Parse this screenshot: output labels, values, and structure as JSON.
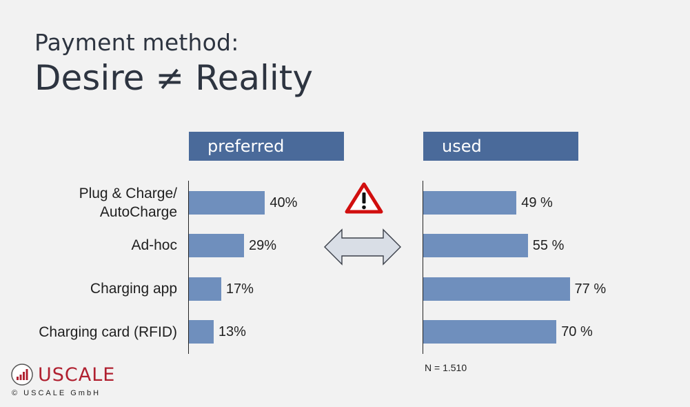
{
  "title": {
    "line1": "Payment method:",
    "line2": "Desire ≠ Reality"
  },
  "chart_data": {
    "type": "bar",
    "orientation": "horizontal",
    "categories": [
      "Plug & Charge/ AutoCharge",
      "Ad-hoc",
      "Charging app",
      "Charging card (RFID)"
    ],
    "panels": [
      {
        "header": "preferred",
        "values": [
          40,
          29,
          17,
          13
        ],
        "labels": [
          "40%",
          "29%",
          "17%",
          "13%"
        ]
      },
      {
        "header": "used",
        "values": [
          49,
          55,
          77,
          70
        ],
        "labels": [
          "49 %",
          "55 %",
          "77 %",
          "70 %"
        ]
      }
    ],
    "bar_color": "#6f8fbd",
    "header_color": "#4a6a9a",
    "note": "N = 1.510"
  },
  "icons": {
    "warning": "warning-triangle-icon",
    "arrow": "double-arrow-icon",
    "logo": "uscale-logo-icon"
  },
  "brand": {
    "name": "USCALE",
    "copyright": "© USCALE GmbH",
    "color": "#b02030"
  }
}
